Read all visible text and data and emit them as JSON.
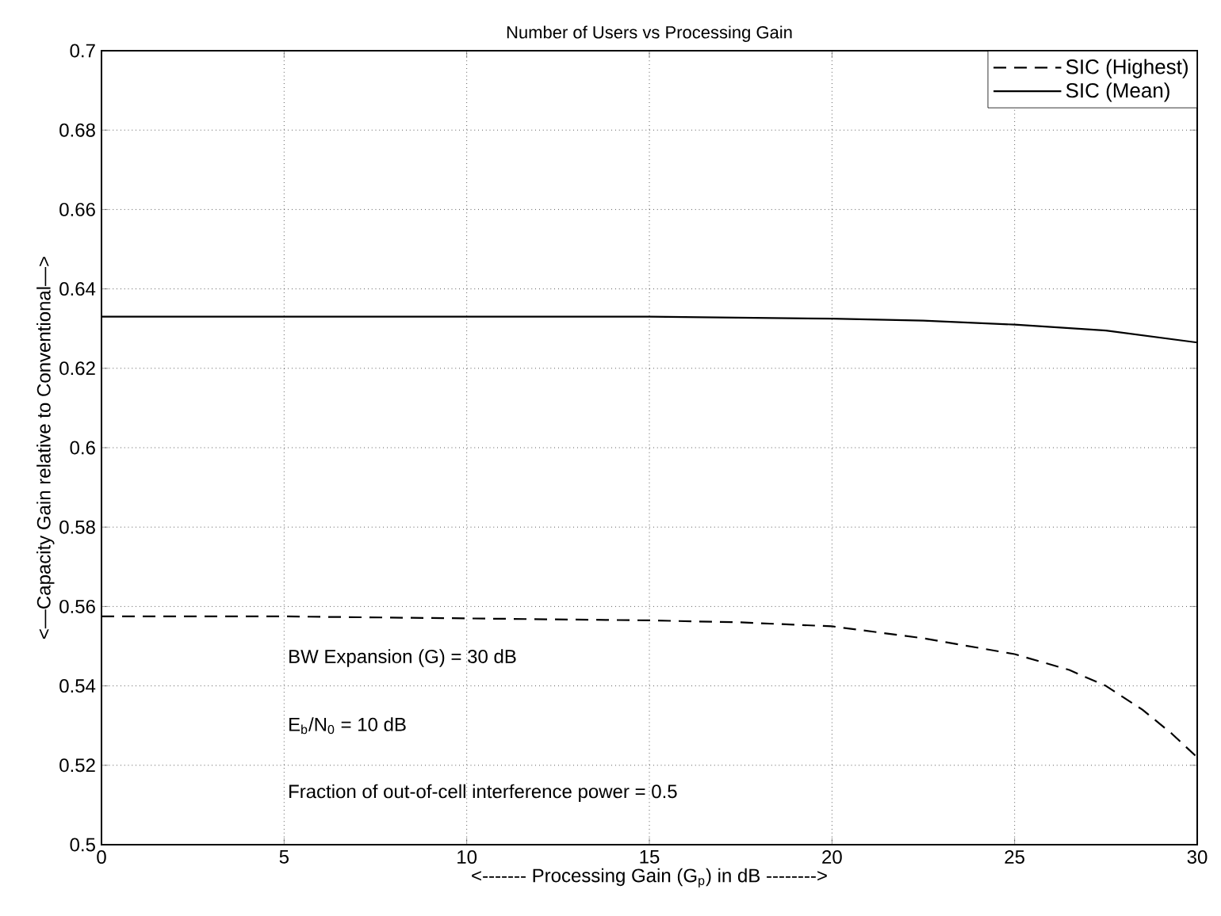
{
  "chart_data": {
    "type": "line",
    "title": "Number of Users vs Processing Gain",
    "xlabel": "<------- Processing Gain (G$_{p}$) in dB -------->",
    "ylabel": "<—Capacity Gain relative to Conventional—>",
    "xlim": [
      0,
      30
    ],
    "ylim": [
      0.5,
      0.7
    ],
    "xticks": [
      0,
      5,
      10,
      15,
      20,
      25,
      30
    ],
    "yticks": [
      0.5,
      0.52,
      0.54,
      0.56,
      0.58,
      0.6,
      0.62,
      0.64,
      0.66,
      0.68,
      0.7
    ],
    "grid": true,
    "legend": "top right",
    "annotations": [
      "BW Expansion (G) = 30 dB",
      "E$_{b}$/N$_{0}$ = 10 dB",
      "Fraction of out-of-cell interference power = 0.5"
    ],
    "series": [
      {
        "name": "SIC (Highest)",
        "color": "#000000",
        "line_style": "dashed",
        "x": [
          0,
          5,
          10,
          15,
          17.5,
          20,
          22.5,
          25,
          26.5,
          27.5,
          28.5,
          29.3,
          30
        ],
        "values": [
          0.5575,
          0.5575,
          0.557,
          0.5565,
          0.556,
          0.555,
          0.552,
          0.548,
          0.544,
          0.54,
          0.534,
          0.528,
          0.522
        ]
      },
      {
        "name": "SIC (Mean)",
        "color": "#000000",
        "line_style": "solid",
        "x": [
          0,
          5,
          10,
          15,
          20,
          22.5,
          25,
          27.5,
          30
        ],
        "values": [
          0.633,
          0.633,
          0.633,
          0.633,
          0.6325,
          0.632,
          0.631,
          0.6295,
          0.6265
        ]
      }
    ]
  }
}
